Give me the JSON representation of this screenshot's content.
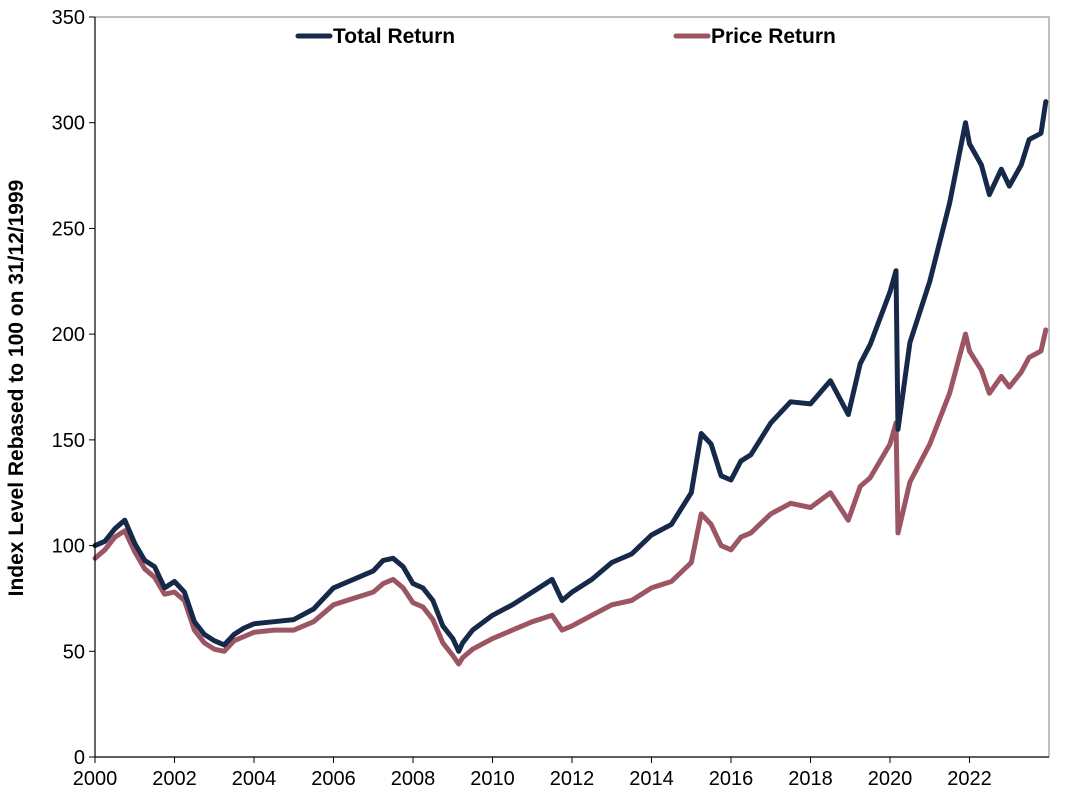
{
  "chart_data": {
    "type": "line",
    "title": "",
    "xlabel": "",
    "ylabel": "Index Level Rebased to 100 on 31/12/1999",
    "xlim": [
      2000,
      2024
    ],
    "ylim": [
      0,
      350
    ],
    "x_ticks": [
      "2000",
      "2002",
      "2004",
      "2006",
      "2008",
      "2010",
      "2012",
      "2014",
      "2016",
      "2018",
      "2020",
      "2022"
    ],
    "y_ticks": [
      "0",
      "50",
      "100",
      "150",
      "200",
      "250",
      "300",
      "350"
    ],
    "grid": false,
    "legend_position": "top-center",
    "x": [
      2000.0,
      2000.25,
      2000.5,
      2000.75,
      2001.0,
      2001.25,
      2001.5,
      2001.75,
      2002.0,
      2002.25,
      2002.5,
      2002.75,
      2003.0,
      2003.25,
      2003.5,
      2003.75,
      2004.0,
      2004.5,
      2005.0,
      2005.5,
      2006.0,
      2006.5,
      2007.0,
      2007.25,
      2007.5,
      2007.75,
      2008.0,
      2008.25,
      2008.5,
      2008.75,
      2009.0,
      2009.15,
      2009.25,
      2009.5,
      2010.0,
      2010.5,
      2011.0,
      2011.5,
      2011.75,
      2012.0,
      2012.5,
      2013.0,
      2013.5,
      2014.0,
      2014.5,
      2015.0,
      2015.25,
      2015.5,
      2015.75,
      2016.0,
      2016.25,
      2016.5,
      2017.0,
      2017.5,
      2018.0,
      2018.5,
      2018.95,
      2019.25,
      2019.5,
      2020.0,
      2020.15,
      2020.2,
      2020.5,
      2021.0,
      2021.5,
      2021.9,
      2022.0,
      2022.3,
      2022.5,
      2022.8,
      2023.0,
      2023.3,
      2023.5,
      2023.8,
      2023.92
    ],
    "series": [
      {
        "name": "Total Return",
        "color": "#17294a",
        "values": [
          100,
          102,
          108,
          112,
          101,
          93,
          90,
          80,
          83,
          78,
          64,
          58,
          55,
          53,
          58,
          61,
          63,
          64,
          65,
          70,
          80,
          84,
          88,
          93,
          94,
          90,
          82,
          80,
          74,
          62,
          56,
          50,
          54,
          60,
          67,
          72,
          78,
          84,
          74,
          78,
          84,
          92,
          96,
          105,
          110,
          125,
          153,
          148,
          133,
          131,
          140,
          143,
          158,
          168,
          167,
          178,
          162,
          186,
          195,
          220,
          230,
          155,
          196,
          225,
          262,
          300,
          290,
          280,
          266,
          278,
          270,
          280,
          292,
          295,
          310
        ]
      },
      {
        "name": "Price Return",
        "color": "#9b5563",
        "values": [
          94,
          98,
          104,
          107,
          97,
          89,
          85,
          77,
          78,
          74,
          60,
          54,
          51,
          50,
          55,
          57,
          59,
          60,
          60,
          64,
          72,
          75,
          78,
          82,
          84,
          80,
          73,
          71,
          65,
          54,
          48,
          44,
          47,
          51,
          56,
          60,
          64,
          67,
          60,
          62,
          67,
          72,
          74,
          80,
          83,
          92,
          115,
          110,
          100,
          98,
          104,
          106,
          115,
          120,
          118,
          125,
          112,
          128,
          132,
          148,
          158,
          106,
          130,
          148,
          172,
          200,
          192,
          183,
          172,
          180,
          175,
          182,
          189,
          192,
          202
        ]
      }
    ]
  }
}
